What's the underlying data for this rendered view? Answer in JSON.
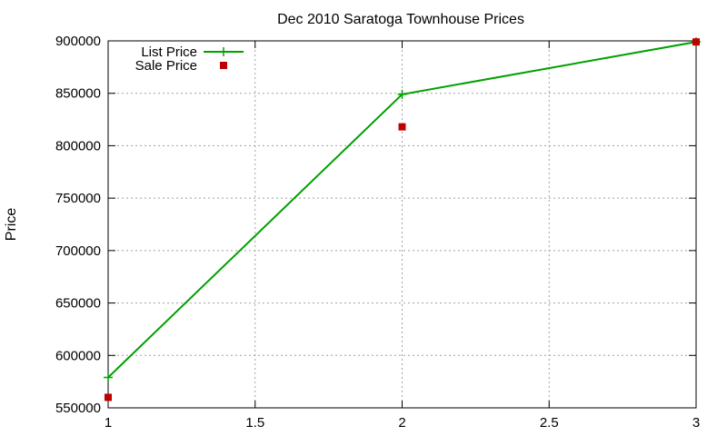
{
  "chart_data": {
    "type": "line",
    "title": "Dec 2010 Saratoga Townhouse Prices",
    "xlabel": "",
    "ylabel": "Price",
    "xlim": [
      1,
      3
    ],
    "ylim": [
      550000,
      900000
    ],
    "xticks": [
      1,
      1.5,
      2,
      2.5,
      3
    ],
    "xtick_labels": [
      "1",
      "1.5",
      "2",
      "2.5",
      "3"
    ],
    "yticks": [
      550000,
      600000,
      650000,
      700000,
      750000,
      800000,
      850000,
      900000
    ],
    "ytick_labels": [
      "550000",
      "600000",
      "650000",
      "700000",
      "750000",
      "800000",
      "850000",
      "900000"
    ],
    "grid": true,
    "legend_position": "top-left",
    "series": [
      {
        "name": "List Price",
        "style": "line-with-plus-markers",
        "color": "#00a000",
        "x": [
          1,
          2,
          3
        ],
        "values": [
          579000,
          849000,
          899000
        ]
      },
      {
        "name": "Sale Price",
        "style": "square-markers",
        "color": "#c00000",
        "x": [
          1,
          2,
          3
        ],
        "values": [
          560000,
          818000,
          899000
        ]
      }
    ]
  }
}
